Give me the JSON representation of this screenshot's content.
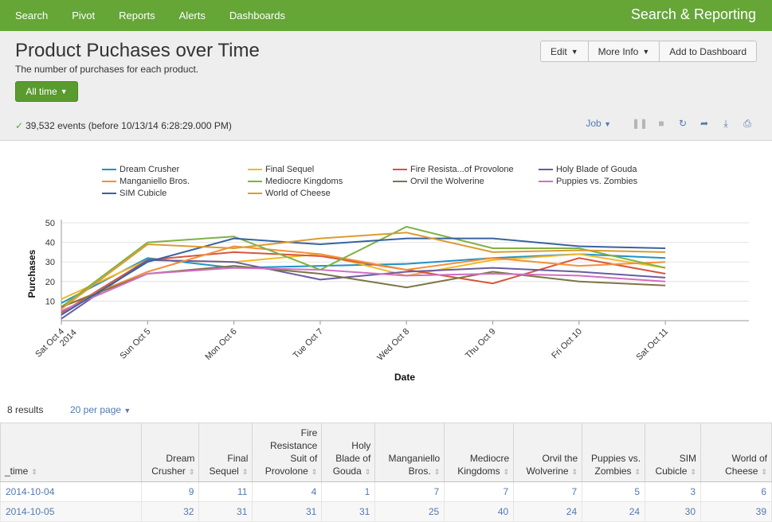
{
  "nav": {
    "items": [
      "Search",
      "Pivot",
      "Reports",
      "Alerts",
      "Dashboards"
    ],
    "app_title": "Search & Reporting"
  },
  "header": {
    "title": "Product Puchases over Time",
    "description": "The number of purchases for each product.",
    "time_picker": "All time",
    "buttons": {
      "edit": "Edit",
      "more_info": "More Info",
      "add_dashboard": "Add to Dashboard"
    },
    "events": "39,532 events (before 10/13/14 6:28:29.000 PM)",
    "job_label": "Job"
  },
  "chart_data": {
    "type": "line",
    "xlabel": "Date",
    "ylabel": "Purchases",
    "x": [
      "Sat Oct 4 2014",
      "Sun Oct 5",
      "Mon Oct 6",
      "Tue Oct 7",
      "Wed Oct 8",
      "Thu Oct 9",
      "Fri Oct 10",
      "Sat Oct 11"
    ],
    "x_tick_labels": [
      [
        "Sat Oct 4",
        "2014"
      ],
      [
        "Sun Oct 5"
      ],
      [
        "Mon Oct 6"
      ],
      [
        "Tue Oct 7"
      ],
      [
        "Wed Oct 8"
      ],
      [
        "Thu Oct 9"
      ],
      [
        "Fri Oct 10"
      ],
      [
        "Sat Oct 11"
      ]
    ],
    "ylim": [
      0,
      50
    ],
    "y_ticks": [
      10,
      20,
      30,
      40,
      50
    ],
    "grid": "horizontal",
    "legend_position": "top",
    "series": [
      {
        "name": "Dream Crusher",
        "color": "#1e93c6",
        "values": [
          9,
          32,
          27,
          28,
          29,
          32,
          34,
          32
        ]
      },
      {
        "name": "Final Sequel",
        "color": "#f2b827",
        "values": [
          11,
          31,
          30,
          34,
          23,
          31,
          34,
          27
        ]
      },
      {
        "name": "Fire Resista...of Provolone",
        "color": "#d6563c",
        "values": [
          4,
          31,
          35,
          33,
          26,
          19,
          32,
          24
        ]
      },
      {
        "name": "Holy Blade of Gouda",
        "color": "#6a5c9e",
        "values": [
          1,
          31,
          30,
          21,
          25,
          27,
          25,
          22
        ]
      },
      {
        "name": "Manganiello Bros.",
        "color": "#f58f39",
        "values": [
          7,
          25,
          38,
          34,
          26,
          32,
          28,
          30
        ]
      },
      {
        "name": "Mediocre Kingdoms",
        "color": "#7fb141",
        "values": [
          7,
          40,
          43,
          26,
          48,
          37,
          37,
          27
        ]
      },
      {
        "name": "Orvil the Wolverine",
        "color": "#7e7545",
        "values": [
          7,
          24,
          28,
          24,
          17,
          25,
          20,
          18
        ]
      },
      {
        "name": "Puppies vs. Zombies",
        "color": "#d16ec5",
        "values": [
          5,
          24,
          27,
          26,
          23,
          24,
          23,
          20
        ]
      },
      {
        "name": "SIM Cubicle",
        "color": "#3863a0",
        "values": [
          3,
          30,
          42,
          39,
          42,
          42,
          38,
          37
        ]
      },
      {
        "name": "World of Cheese",
        "color": "#dc9b31",
        "values": [
          6,
          39,
          37,
          42,
          45,
          35,
          36,
          35
        ]
      }
    ]
  },
  "results": {
    "count": "8 results",
    "per_page": "20 per page",
    "columns": [
      [
        "_time"
      ],
      [
        "Dream",
        "Crusher"
      ],
      [
        "Final",
        "Sequel"
      ],
      [
        "Fire",
        "Resistance",
        "Suit of",
        "Provolone"
      ],
      [
        "Holy",
        "Blade of",
        "Gouda"
      ],
      [
        "Manganiello",
        "Bros."
      ],
      [
        "Mediocre",
        "Kingdoms"
      ],
      [
        "Orvil the",
        "Wolverine"
      ],
      [
        "Puppies vs.",
        "Zombies"
      ],
      [
        "SIM",
        "Cubicle"
      ],
      [
        "World of",
        "Cheese"
      ]
    ],
    "rows": [
      [
        "2014-10-04",
        "9",
        "11",
        "4",
        "1",
        "7",
        "7",
        "7",
        "5",
        "3",
        "6"
      ],
      [
        "2014-10-05",
        "32",
        "31",
        "31",
        "31",
        "25",
        "40",
        "24",
        "24",
        "30",
        "39"
      ]
    ]
  }
}
